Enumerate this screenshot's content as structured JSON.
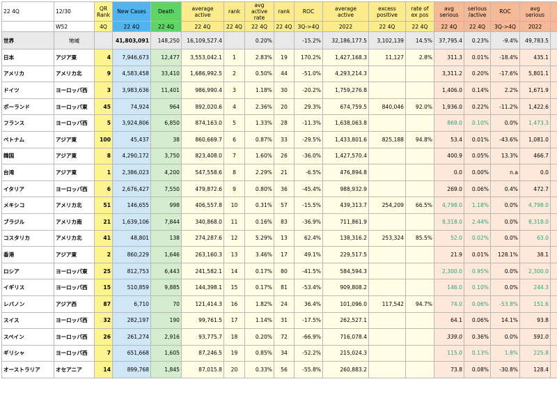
{
  "header": {
    "period": "22 4Q",
    "date": "12/30",
    "week": "W52",
    "columns": [
      "QR\nRank",
      "New Cases",
      "Death",
      "average\nactive",
      "rank",
      "avg active\nrate",
      "rank",
      "ROC",
      "average\nactive",
      "excess\npositive",
      "rate of\nex pos",
      "avg\nserious",
      "serious\n/active",
      "ROC",
      "avg\nserious",
      "serious/\n2022"
    ],
    "sub": [
      "4Q",
      "22 4Q",
      "22 4Q",
      "22 4Q",
      "22 4Q",
      "22 4Q",
      "22 4Q",
      "3Q->4Q",
      "2022",
      "22 4Q",
      "22 4Q",
      "22 4Q",
      "22 4Q",
      "3Q->4Q",
      "2022",
      "2022"
    ]
  },
  "world": {
    "name": "世界",
    "region": "地域",
    "cells": [
      "",
      "41,803,091",
      "148,250",
      "16,109,527.4",
      "",
      "0.20%",
      "",
      "-15.2%",
      "32,186,177.5",
      "3,102,139",
      "14.5%",
      "37,795.4",
      "0.23%",
      "-9.4%",
      "49,783.5",
      "0.15%"
    ]
  },
  "rows": [
    {
      "name": "日本",
      "region": "アジア東",
      "cells": [
        "4",
        "7,946,673",
        "12,477",
        "3,553,042.1",
        "1",
        "2.83%",
        "19",
        "170.2%",
        "1,427,168.3",
        "11,127",
        "2.8%",
        "311.3",
        "0.01%",
        "-18.4%",
        "435.1",
        "0.03%"
      ]
    },
    {
      "name": "アメリカ",
      "region": "アメリカ北",
      "cells": [
        "9",
        "4,583,458",
        "33,410",
        "1,686,992.5",
        "2",
        "0.50%",
        "44",
        "-51.0%",
        "4,293,214.3",
        "",
        "",
        "3,311.2",
        "0.20%",
        "-17.6%",
        "5,801.1",
        "0.14%"
      ]
    },
    {
      "name": "ドイツ",
      "region": "ヨーロッパ西",
      "cells": [
        "3",
        "3,983,636",
        "11,401",
        "986,990.4",
        "3",
        "1.18%",
        "30",
        "-20.2%",
        "1,759,276.8",
        "",
        "",
        "1,406.0",
        "0.14%",
        "2.2%",
        "1,671.9",
        "0.10%"
      ]
    },
    {
      "name": "ポーランド",
      "region": "ヨーロッパ東",
      "cells": [
        "45",
        "74,924",
        "964",
        "892,020.6",
        "4",
        "2.36%",
        "20",
        "29.3%",
        "674,759.5",
        "840,046",
        "92.0%",
        "1,936.0",
        "0.22%",
        "-11.2%",
        "1,422.6",
        "0.21%"
      ]
    },
    {
      "name": "フランス",
      "region": "ヨーロッパ西",
      "cells": [
        "5",
        "3,924,806",
        "6,850",
        "874,163.0",
        "5",
        "1.33%",
        "28",
        "-11.3%",
        "1,638,063.8",
        "",
        "",
        "869.0",
        "0.10%",
        "0.0%",
        "1,473.3",
        "0.09%"
      ],
      "teal": true
    },
    {
      "name": "ベトナム",
      "region": "アジア東",
      "cells": [
        "100",
        "45,437",
        "38",
        "860,669.7",
        "6",
        "0.87%",
        "33",
        "-29.5%",
        "1,433,801.6",
        "825,188",
        "94.8%",
        "53.4",
        "0.01%",
        "-43.6%",
        "1,081.0",
        "0.08%"
      ]
    },
    {
      "name": "韓国",
      "region": "アジア東",
      "cells": [
        "8",
        "4,290,172",
        "3,750",
        "823,408.0",
        "7",
        "1.60%",
        "26",
        "-36.0%",
        "1,427,570.4",
        "",
        "",
        "400.9",
        "0.05%",
        "13.3%",
        "466.7",
        "0.03%"
      ]
    },
    {
      "name": "台湾",
      "region": "アジア東",
      "cells": [
        "1",
        "2,386,023",
        "4,200",
        "547,558.6",
        "8",
        "2.29%",
        "21",
        "-6.5%",
        "476,894.8",
        "",
        "",
        "0.0",
        "0.00%",
        "n.a",
        "0.0",
        "0.00%"
      ]
    },
    {
      "name": "イタリア",
      "region": "ヨーロッパ西",
      "cells": [
        "6",
        "2,676,427",
        "7,550",
        "479,872.6",
        "9",
        "0.80%",
        "36",
        "-45.4%",
        "988,932.9",
        "",
        "",
        "269.0",
        "0.06%",
        "0.4%",
        "472.7",
        "0.05%"
      ]
    },
    {
      "name": "メキシコ",
      "region": "アメリカ北",
      "cells": [
        "51",
        "146,655",
        "998",
        "406,557.8",
        "10",
        "0.31%",
        "57",
        "-15.5%",
        "439,313.7",
        "254,209",
        "66.5%",
        "4,798.0",
        "1.18%",
        "0.0%",
        "4,798.0",
        "1.09%"
      ],
      "teal": true
    },
    {
      "name": "ブラジル",
      "region": "アメリカ南",
      "cells": [
        "21",
        "1,639,106",
        "7,844",
        "340,868.0",
        "11",
        "0.16%",
        "83",
        "-36.9%",
        "711,861.9",
        "",
        "",
        "8,318.0",
        "2.44%",
        "0.0%",
        "8,318.0",
        "1.17%"
      ],
      "teal": true
    },
    {
      "name": "コスタリカ",
      "region": "アメリカ北",
      "cells": [
        "41",
        "48,801",
        "138",
        "274,287.6",
        "12",
        "5.29%",
        "13",
        "62.4%",
        "138,316.2",
        "253,324",
        "85.5%",
        "52.0",
        "0.02%",
        "0.0%",
        "63.0",
        "0.05%"
      ],
      "teal": true
    },
    {
      "name": "香港",
      "region": "アジア東",
      "cells": [
        "2",
        "860,229",
        "1,646",
        "263,160.3",
        "13",
        "3.46%",
        "17",
        "49.1%",
        "229,517.5",
        "",
        "",
        "21.9",
        "0.01%",
        "128.1%",
        "38.1",
        "0.02%"
      ]
    },
    {
      "name": "ロシア",
      "region": "ヨーロッパ東",
      "cells": [
        "25",
        "812,753",
        "6,443",
        "241,582.1",
        "14",
        "0.17%",
        "80",
        "-41.5%",
        "584,594.3",
        "",
        "",
        "2,300.0",
        "0.95%",
        "0.0%",
        "2,300.0",
        "0.39%"
      ],
      "teal": true
    },
    {
      "name": "イギリス",
      "region": "ヨーロッパ西",
      "cells": [
        "15",
        "510,859",
        "9,885",
        "144,398.1",
        "15",
        "0.17%",
        "81",
        "-53.4%",
        "909,808.2",
        "",
        "",
        "146.0",
        "0.10%",
        "0.0%",
        "244.3",
        "0.03%"
      ],
      "teal": true
    },
    {
      "name": "レバノン",
      "region": "アジア西",
      "cells": [
        "87",
        "6,710",
        "70",
        "121,414.3",
        "16",
        "1.82%",
        "24",
        "36.4%",
        "101,096.0",
        "117,542",
        "94.7%",
        "74.0",
        "0.06%",
        "-53.8%",
        "151.6",
        "0.15%"
      ],
      "teal": true
    },
    {
      "name": "スイス",
      "region": "ヨーロッパ西",
      "cells": [
        "32",
        "282,197",
        "190",
        "99,761.5",
        "17",
        "1.14%",
        "31",
        "-17.5%",
        "262,527.1",
        "",
        "",
        "64.1",
        "0.06%",
        "14.1%",
        "93.8",
        "0.04%"
      ]
    },
    {
      "name": "スペイン",
      "region": "ヨーロッパ西",
      "cells": [
        "26",
        "261,274",
        "2,916",
        "93,775.7",
        "18",
        "0.20%",
        "72",
        "-66.9%",
        "716,078.4",
        "",
        "",
        "339.0",
        "0.36%",
        "0.0%",
        "591.0",
        "0.08%"
      ],
      "italic": true
    },
    {
      "name": "ギリシャ",
      "region": "ヨーロッパ西",
      "cells": [
        "7",
        "651,668",
        "1,605",
        "87,246.5",
        "19",
        "0.85%",
        "34",
        "-52.2%",
        "215,024.3",
        "",
        "",
        "115.0",
        "0.13%",
        "1.8%",
        "225.8",
        "0.10%"
      ],
      "teal": true
    },
    {
      "name": "オーストラリア",
      "region": "オセアニア",
      "cells": [
        "14",
        "899,768",
        "1,845",
        "87,015.8",
        "20",
        "0.33%",
        "56",
        "-55.8%",
        "260,883.2",
        "",
        "",
        "73.8",
        "0.08%",
        "-30.8%",
        "128.4",
        "0.05%"
      ]
    }
  ]
}
